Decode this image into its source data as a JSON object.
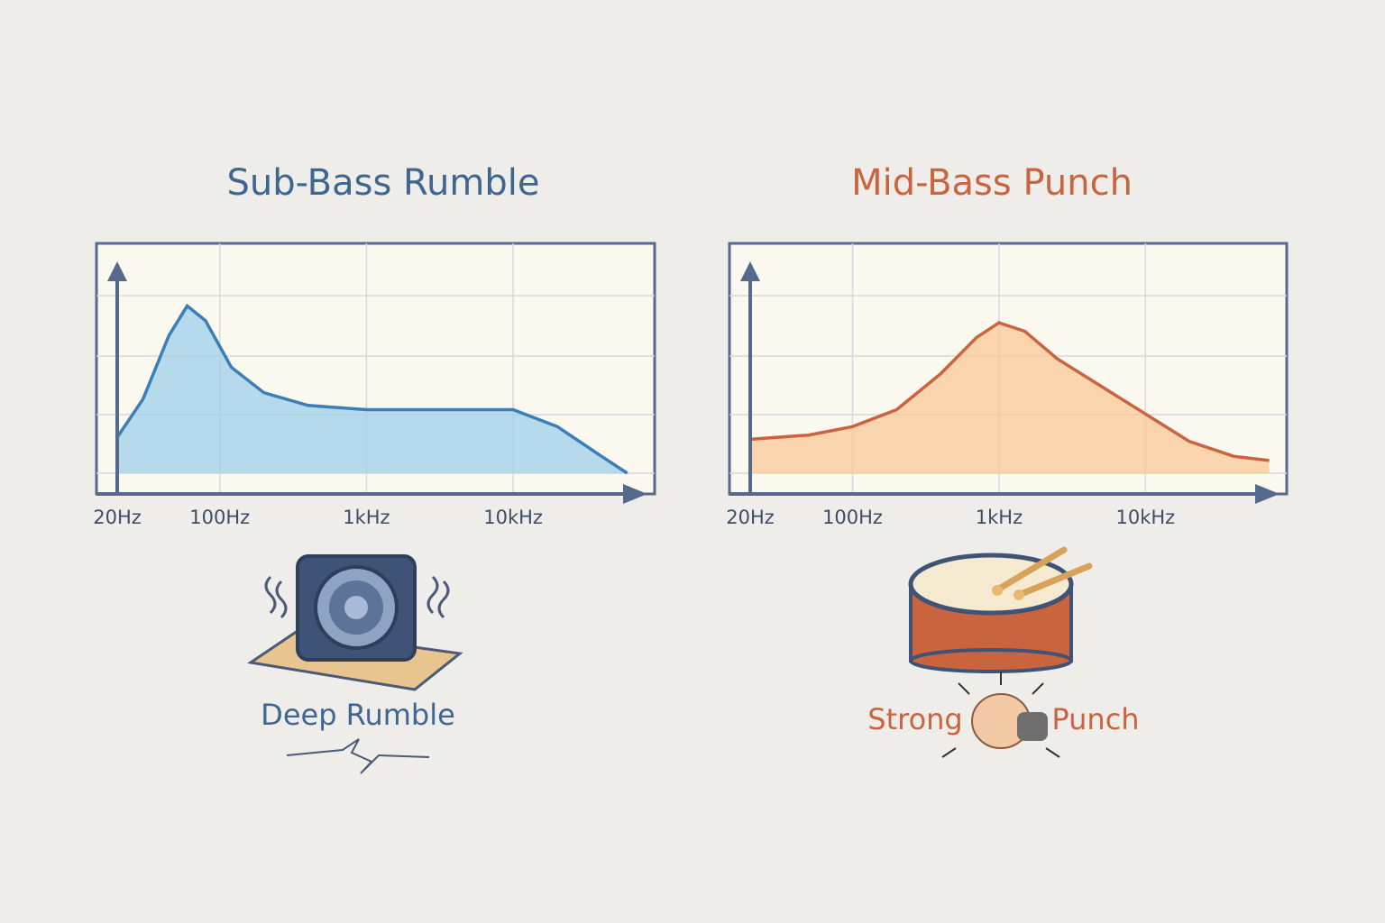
{
  "chart_data": [
    {
      "type": "line",
      "title": "Sub-Bass Rumble",
      "color": "#3a7fb8",
      "fill": "#9fd0ea",
      "title_color": "#3e6690",
      "x": [
        20,
        30,
        45,
        60,
        80,
        120,
        200,
        400,
        1000,
        3000,
        10000,
        20000,
        40000,
        60000
      ],
      "values": [
        17,
        35,
        65,
        79,
        72,
        50,
        38,
        32,
        30,
        30,
        30,
        22,
        8,
        0
      ],
      "log_x": true,
      "xlim": [
        20,
        80000
      ],
      "ylim": [
        0,
        100
      ],
      "xticks": [
        {
          "value": 20,
          "label": "20Hz"
        },
        {
          "value": 100,
          "label": "100Hz"
        },
        {
          "value": 1000,
          "label": "1kHz"
        },
        {
          "value": 10000,
          "label": "10kHz"
        }
      ],
      "annotations": [
        "Deep Rumble"
      ]
    },
    {
      "type": "line",
      "title": "Mid-Bass Punch",
      "color": "#c9643f",
      "fill": "#f8c896",
      "title_color": "#c9643f",
      "x": [
        20,
        50,
        100,
        200,
        400,
        700,
        1000,
        1500,
        2500,
        5000,
        10000,
        20000,
        40000,
        70000
      ],
      "values": [
        16,
        18,
        22,
        30,
        47,
        64,
        71,
        67,
        54,
        41,
        28,
        15,
        8,
        6
      ],
      "log_x": true,
      "xlim": [
        20,
        80000
      ],
      "ylim": [
        0,
        100
      ],
      "xticks": [
        {
          "value": 20,
          "label": "20Hz"
        },
        {
          "value": 100,
          "label": "100Hz"
        },
        {
          "value": 1000,
          "label": "1kHz"
        },
        {
          "value": 10000,
          "label": "10kHz"
        }
      ],
      "annotations": [
        "Strong",
        "Punch"
      ]
    }
  ]
}
